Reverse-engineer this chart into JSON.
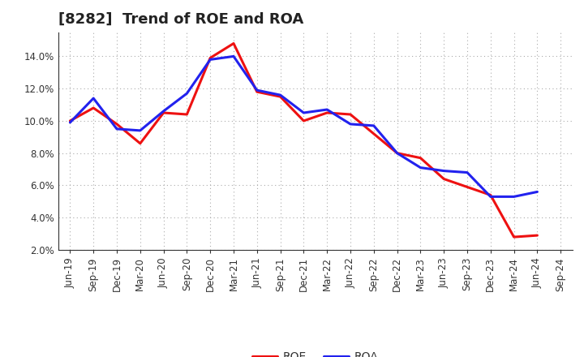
{
  "title": "[8282]  Trend of ROE and ROA",
  "x_labels": [
    "Jun-19",
    "Sep-19",
    "Dec-19",
    "Mar-20",
    "Jun-20",
    "Sep-20",
    "Dec-20",
    "Mar-21",
    "Jun-21",
    "Sep-21",
    "Dec-21",
    "Mar-22",
    "Jun-22",
    "Sep-22",
    "Dec-22",
    "Mar-23",
    "Jun-23",
    "Sep-23",
    "Dec-23",
    "Mar-24",
    "Jun-24",
    "Sep-24"
  ],
  "ROE": [
    10.0,
    10.8,
    9.8,
    8.6,
    10.5,
    10.4,
    13.9,
    14.8,
    11.8,
    11.5,
    10.0,
    10.5,
    10.4,
    9.2,
    8.0,
    7.7,
    6.4,
    5.9,
    5.4,
    2.8,
    2.9,
    null
  ],
  "ROA": [
    9.9,
    11.4,
    9.5,
    9.4,
    10.6,
    11.7,
    13.8,
    14.0,
    11.9,
    11.6,
    10.5,
    10.7,
    9.8,
    9.7,
    8.0,
    7.1,
    6.9,
    6.8,
    5.3,
    5.3,
    5.6,
    null
  ],
  "ROE_color": "#EE1111",
  "ROA_color": "#2222EE",
  "line_width": 2.2,
  "ylim": [
    2.0,
    15.5
  ],
  "yticks": [
    2.0,
    4.0,
    6.0,
    8.0,
    10.0,
    12.0,
    14.0
  ],
  "background_color": "#FFFFFF",
  "plot_bg_color": "#FFFFFF",
  "grid_color": "#AAAAAA",
  "title_fontsize": 13,
  "legend_fontsize": 10,
  "tick_fontsize": 8.5
}
